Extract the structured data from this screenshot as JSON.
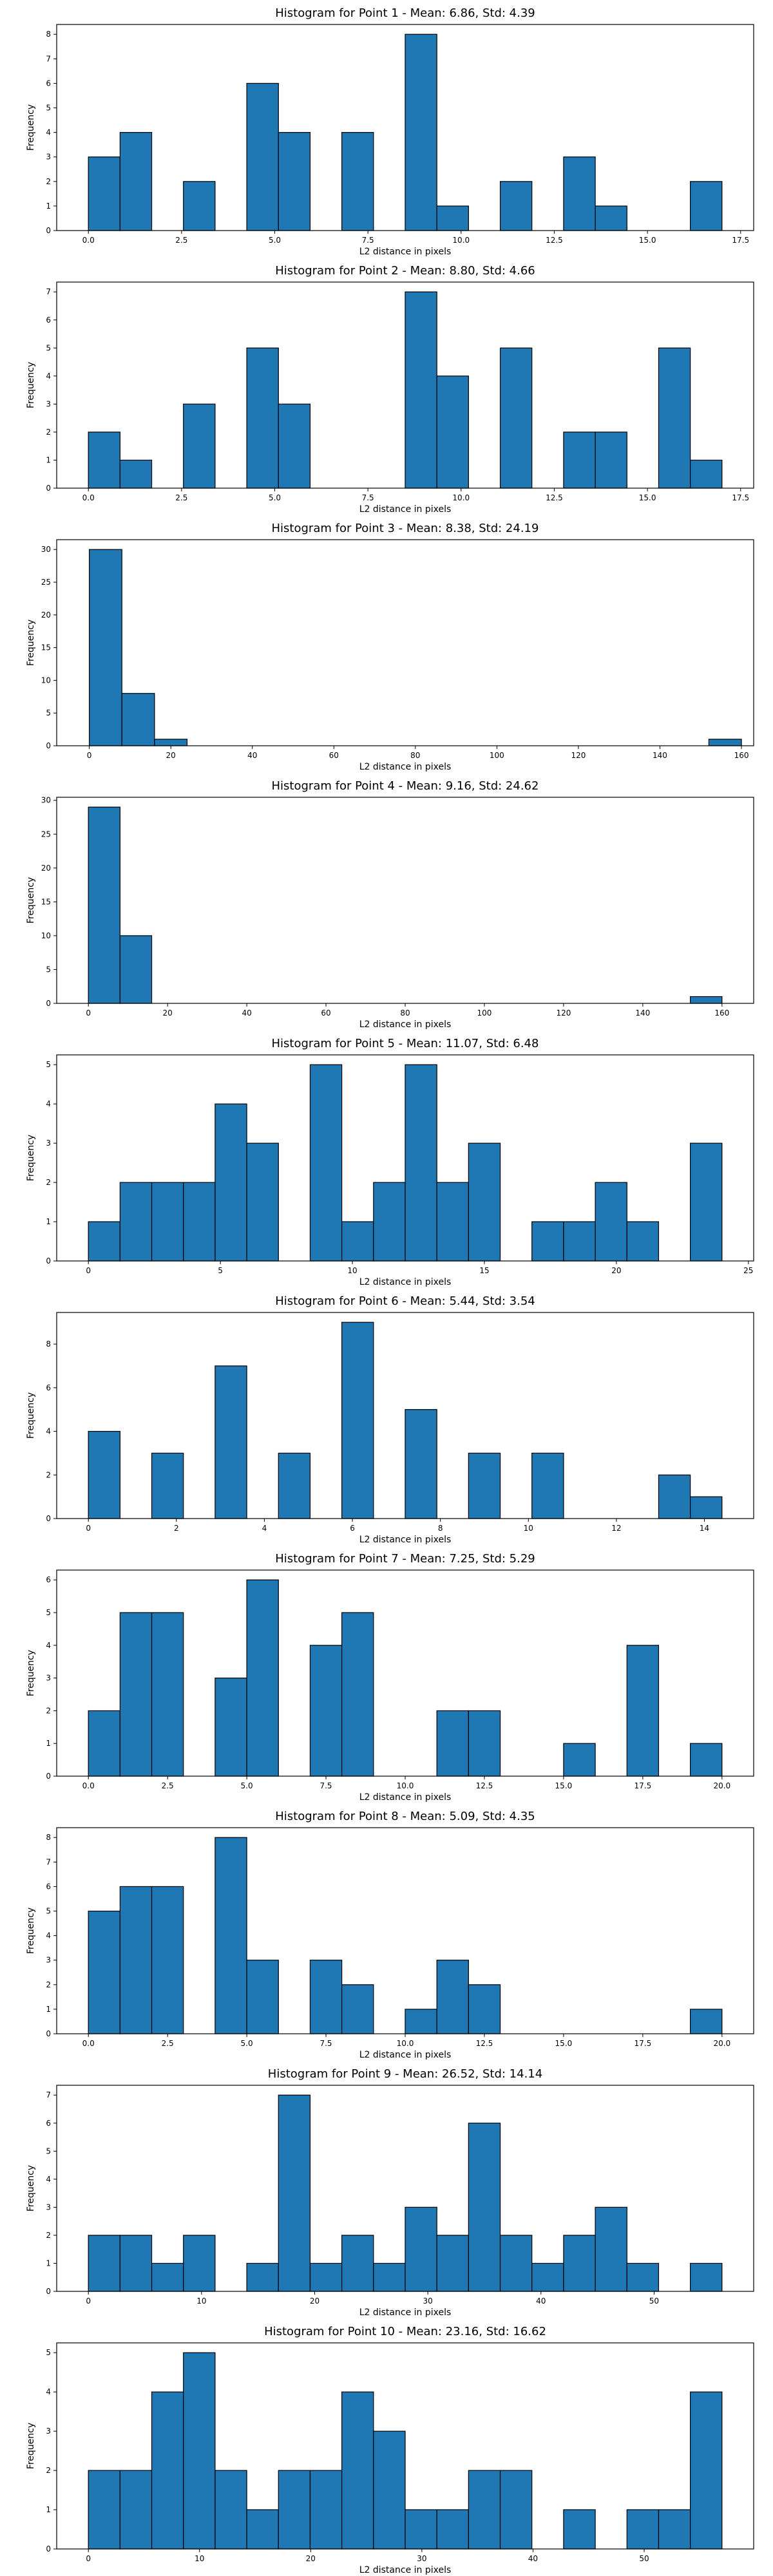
{
  "colors": {
    "bar": "#1f77b4",
    "edge": "#000000",
    "background": "#ffffff"
  },
  "chart_data": [
    {
      "type": "bar",
      "title": "Histogram for Point 1 - Mean: 6.86, Std: 4.39",
      "xlabel": "L2 distance in pixels",
      "ylabel": "Frequency",
      "xlim": [
        -0.85,
        17.85
      ],
      "ylim": [
        0,
        8.4
      ],
      "xticks": [
        0.0,
        2.5,
        5.0,
        7.5,
        10.0,
        12.5,
        15.0,
        17.5
      ],
      "xtick_labels": [
        "0.0",
        "2.5",
        "5.0",
        "7.5",
        "10.0",
        "12.5",
        "15.0",
        "17.5"
      ],
      "yticks": [
        0,
        1,
        2,
        3,
        4,
        5,
        6,
        7,
        8
      ],
      "ytick_labels": [
        "0",
        "1",
        "2",
        "3",
        "4",
        "5",
        "6",
        "7",
        "8"
      ],
      "bins": {
        "start": 0.0,
        "width": 0.85
      },
      "values": [
        3,
        4,
        0,
        2,
        0,
        6,
        4,
        0,
        4,
        0,
        8,
        1,
        0,
        2,
        0,
        3,
        1,
        0,
        0,
        2
      ],
      "grid": false
    },
    {
      "type": "bar",
      "title": "Histogram for Point 2 - Mean: 8.80, Std: 4.66",
      "xlabel": "L2 distance in pixels",
      "ylabel": "Frequency",
      "xlim": [
        -0.85,
        17.85
      ],
      "ylim": [
        0,
        7.35
      ],
      "xticks": [
        0.0,
        2.5,
        5.0,
        7.5,
        10.0,
        12.5,
        15.0,
        17.5
      ],
      "xtick_labels": [
        "0.0",
        "2.5",
        "5.0",
        "7.5",
        "10.0",
        "12.5",
        "15.0",
        "17.5"
      ],
      "yticks": [
        0,
        1,
        2,
        3,
        4,
        5,
        6,
        7
      ],
      "ytick_labels": [
        "0",
        "1",
        "2",
        "3",
        "4",
        "5",
        "6",
        "7"
      ],
      "bins": {
        "start": 0.0,
        "width": 0.85
      },
      "values": [
        2,
        1,
        0,
        3,
        0,
        5,
        3,
        0,
        0,
        0,
        7,
        4,
        0,
        5,
        0,
        2,
        2,
        0,
        5,
        1
      ],
      "grid": false
    },
    {
      "type": "bar",
      "title": "Histogram for Point 3 - Mean: 8.38, Std: 24.19",
      "xlabel": "L2 distance in pixels",
      "ylabel": "Frequency",
      "xlim": [
        -8,
        163
      ],
      "ylim": [
        0,
        31.5
      ],
      "xticks": [
        0,
        20,
        40,
        60,
        80,
        100,
        120,
        140,
        160
      ],
      "xtick_labels": [
        "0",
        "20",
        "40",
        "60",
        "80",
        "100",
        "120",
        "140",
        "160"
      ],
      "yticks": [
        0,
        5,
        10,
        15,
        20,
        25,
        30
      ],
      "ytick_labels": [
        "0",
        "5",
        "10",
        "15",
        "20",
        "25",
        "30"
      ],
      "bins": {
        "start": 0,
        "width": 8
      },
      "values": [
        30,
        8,
        1,
        0,
        0,
        0,
        0,
        0,
        0,
        0,
        0,
        0,
        0,
        0,
        0,
        0,
        0,
        0,
        0,
        1
      ],
      "grid": false
    },
    {
      "type": "bar",
      "title": "Histogram for Point 4 - Mean: 9.16, Std: 24.62",
      "xlabel": "L2 distance in pixels",
      "ylabel": "Frequency",
      "xlim": [
        -8,
        168
      ],
      "ylim": [
        0,
        30.45
      ],
      "xticks": [
        0,
        20,
        40,
        60,
        80,
        100,
        120,
        140,
        160
      ],
      "xtick_labels": [
        "0",
        "20",
        "40",
        "60",
        "80",
        "100",
        "120",
        "140",
        "160"
      ],
      "yticks": [
        0,
        5,
        10,
        15,
        20,
        25,
        30
      ],
      "ytick_labels": [
        "0",
        "5",
        "10",
        "15",
        "20",
        "25",
        "30"
      ],
      "bins": {
        "start": 0,
        "width": 8
      },
      "values": [
        29,
        10,
        0,
        0,
        0,
        0,
        0,
        0,
        0,
        0,
        0,
        0,
        0,
        0,
        0,
        0,
        0,
        0,
        0,
        1
      ],
      "grid": false
    },
    {
      "type": "bar",
      "title": "Histogram for Point 5 - Mean: 11.07, Std: 6.48",
      "xlabel": "L2 distance in pixels",
      "ylabel": "Frequency",
      "xlim": [
        -1.2,
        25.2
      ],
      "ylim": [
        0,
        5.25
      ],
      "xticks": [
        0,
        5,
        10,
        15,
        20,
        25
      ],
      "xtick_labels": [
        "0",
        "5",
        "10",
        "15",
        "20",
        "25"
      ],
      "yticks": [
        0,
        1,
        2,
        3,
        4,
        5
      ],
      "ytick_labels": [
        "0",
        "1",
        "2",
        "3",
        "4",
        "5"
      ],
      "bins": {
        "start": 0,
        "width": 1.2
      },
      "values": [
        1,
        2,
        2,
        2,
        4,
        3,
        0,
        5,
        1,
        2,
        5,
        2,
        3,
        0,
        1,
        1,
        2,
        1,
        0,
        3
      ],
      "grid": false
    },
    {
      "type": "bar",
      "title": "Histogram for Point 6 - Mean: 5.44, Std: 3.54",
      "xlabel": "L2 distance in pixels",
      "ylabel": "Frequency",
      "xlim": [
        -0.72,
        15.12
      ],
      "ylim": [
        0,
        9.45
      ],
      "xticks": [
        0,
        2,
        4,
        6,
        8,
        10,
        12,
        14
      ],
      "xtick_labels": [
        "0",
        "2",
        "4",
        "6",
        "8",
        "10",
        "12",
        "14"
      ],
      "yticks": [
        0,
        2,
        4,
        6,
        8
      ],
      "ytick_labels": [
        "0",
        "2",
        "4",
        "6",
        "8"
      ],
      "bins": {
        "start": 0,
        "width": 0.72
      },
      "values": [
        4,
        0,
        3,
        0,
        7,
        0,
        3,
        0,
        9,
        0,
        5,
        0,
        3,
        0,
        3,
        0,
        0,
        0,
        2,
        1
      ],
      "grid": false
    },
    {
      "type": "bar",
      "title": "Histogram for Point 7 - Mean: 7.25, Std: 5.29",
      "xlabel": "L2 distance in pixels",
      "ylabel": "Frequency",
      "xlim": [
        -1.0,
        21.0
      ],
      "ylim": [
        0,
        6.3
      ],
      "xticks": [
        0.0,
        2.5,
        5.0,
        7.5,
        10.0,
        12.5,
        15.0,
        17.5,
        20.0
      ],
      "xtick_labels": [
        "0.0",
        "2.5",
        "5.0",
        "7.5",
        "10.0",
        "12.5",
        "15.0",
        "17.5",
        "20.0"
      ],
      "yticks": [
        0,
        1,
        2,
        3,
        4,
        5,
        6
      ],
      "ytick_labels": [
        "0",
        "1",
        "2",
        "3",
        "4",
        "5",
        "6"
      ],
      "bins": {
        "start": 0.0,
        "width": 1.0
      },
      "values": [
        2,
        5,
        5,
        0,
        3,
        6,
        0,
        4,
        5,
        0,
        0,
        2,
        2,
        0,
        0,
        1,
        0,
        4,
        0,
        1
      ],
      "grid": false
    },
    {
      "type": "bar",
      "title": "Histogram for Point 8 - Mean: 5.09, Std: 4.35",
      "xlabel": "L2 distance in pixels",
      "ylabel": "Frequency",
      "xlim": [
        -1.0,
        21.0
      ],
      "ylim": [
        0,
        8.4
      ],
      "xticks": [
        0.0,
        2.5,
        5.0,
        7.5,
        10.0,
        12.5,
        15.0,
        17.5,
        20.0
      ],
      "xtick_labels": [
        "0.0",
        "2.5",
        "5.0",
        "7.5",
        "10.0",
        "12.5",
        "15.0",
        "17.5",
        "20.0"
      ],
      "yticks": [
        0,
        1,
        2,
        3,
        4,
        5,
        6,
        7,
        8
      ],
      "ytick_labels": [
        "0",
        "1",
        "2",
        "3",
        "4",
        "5",
        "6",
        "7",
        "8"
      ],
      "bins": {
        "start": 0.0,
        "width": 1.0
      },
      "values": [
        5,
        6,
        6,
        0,
        8,
        3,
        0,
        3,
        2,
        0,
        1,
        3,
        2,
        0,
        0,
        0,
        0,
        0,
        0,
        1
      ],
      "grid": false
    },
    {
      "type": "bar",
      "title": "Histogram for Point 9 - Mean: 26.52, Std: 14.14",
      "xlabel": "L2 distance in pixels",
      "ylabel": "Frequency",
      "xlim": [
        -2.8,
        58.8
      ],
      "ylim": [
        0,
        7.35
      ],
      "xticks": [
        0,
        10,
        20,
        30,
        40,
        50
      ],
      "xtick_labels": [
        "0",
        "10",
        "20",
        "30",
        "40",
        "50"
      ],
      "yticks": [
        0,
        1,
        2,
        3,
        4,
        5,
        6,
        7
      ],
      "ytick_labels": [
        "0",
        "1",
        "2",
        "3",
        "4",
        "5",
        "6",
        "7"
      ],
      "bins": {
        "start": 0,
        "width": 2.8
      },
      "values": [
        2,
        2,
        1,
        2,
        0,
        1,
        7,
        1,
        2,
        1,
        3,
        2,
        6,
        2,
        1,
        2,
        3,
        1,
        0,
        1
      ],
      "grid": false
    },
    {
      "type": "bar",
      "title": "Histogram for Point 10 - Mean: 23.16, Std: 16.62",
      "xlabel": "L2 distance in pixels",
      "ylabel": "Frequency",
      "xlim": [
        -2.85,
        59.85
      ],
      "ylim": [
        0,
        5.25
      ],
      "xticks": [
        0,
        10,
        20,
        30,
        40,
        50
      ],
      "xtick_labels": [
        "0",
        "10",
        "20",
        "30",
        "40",
        "50"
      ],
      "yticks": [
        0,
        1,
        2,
        3,
        4,
        5
      ],
      "ytick_labels": [
        "0",
        "1",
        "2",
        "3",
        "4",
        "5"
      ],
      "bins": {
        "start": 0,
        "width": 2.85
      },
      "values": [
        2,
        2,
        4,
        5,
        2,
        1,
        2,
        2,
        4,
        3,
        1,
        1,
        2,
        2,
        0,
        1,
        0,
        1,
        1,
        4
      ],
      "grid": false
    }
  ]
}
